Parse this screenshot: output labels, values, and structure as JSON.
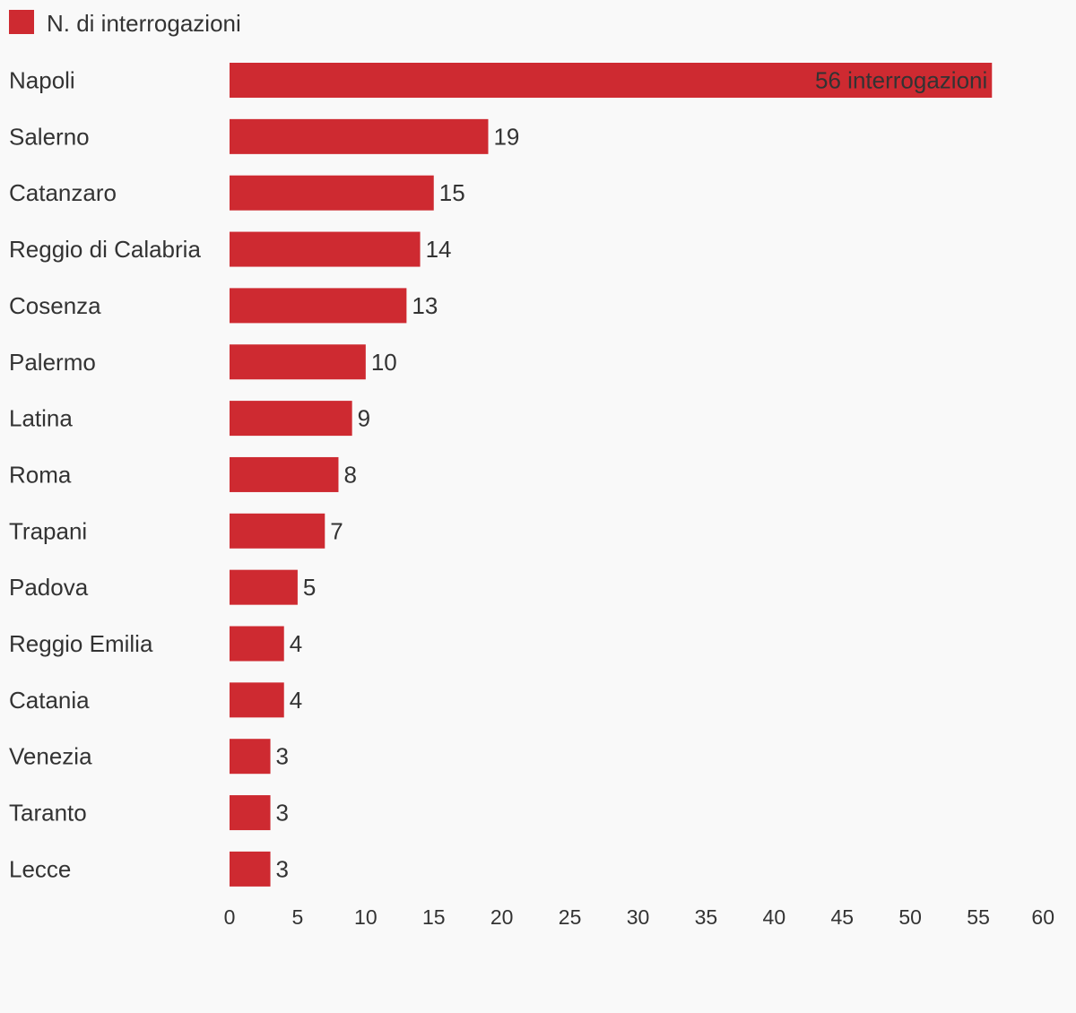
{
  "colors": {
    "bar": "#ce2a31",
    "background": "#f9f9f9",
    "text": "#333333"
  },
  "legend": {
    "label": "N. di interrogazioni"
  },
  "chart_data": {
    "type": "bar",
    "orientation": "horizontal",
    "categories": [
      "Napoli",
      "Salerno",
      "Catanzaro",
      "Reggio di Calabria",
      "Cosenza",
      "Palermo",
      "Latina",
      "Roma",
      "Trapani",
      "Padova",
      "Reggio Emilia",
      "Catania",
      "Venezia",
      "Taranto",
      "Lecce"
    ],
    "series": [
      {
        "name": "N. di interrogazioni",
        "values": [
          56,
          19,
          15,
          14,
          13,
          10,
          9,
          8,
          7,
          5,
          4,
          4,
          3,
          3,
          3
        ]
      }
    ],
    "data_labels": [
      "56 interrogazioni",
      "19",
      "15",
      "14",
      "13",
      "10",
      "9",
      "8",
      "7",
      "5",
      "4",
      "4",
      "3",
      "3",
      "3"
    ],
    "xlim": [
      0,
      60
    ],
    "x_ticks": [
      0,
      5,
      10,
      15,
      20,
      25,
      30,
      35,
      40,
      45,
      50,
      55,
      60
    ],
    "legend_position": "top-left",
    "grid": false
  }
}
